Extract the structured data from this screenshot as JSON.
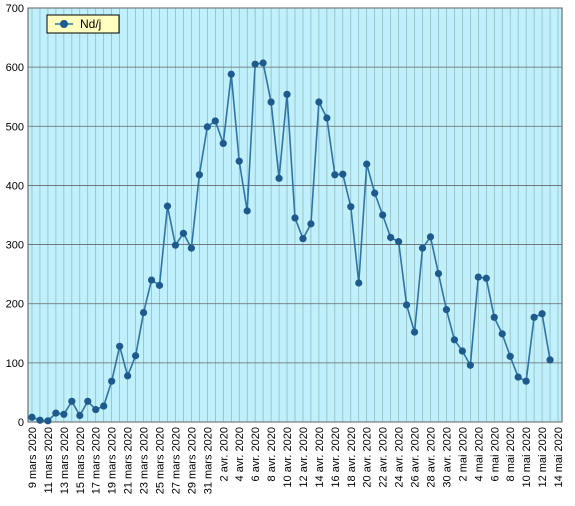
{
  "chart_data": {
    "type": "line",
    "categories": [
      "9 mars 2020",
      null,
      "11 mars 2020",
      null,
      "13 mars 2020",
      null,
      "15 mars 2020",
      null,
      "17 mars 2020",
      null,
      "19 mars 2020",
      null,
      "21 mars 2020",
      null,
      "23 mars 2020",
      null,
      "25 mars 2020",
      null,
      "27 mars 2020",
      null,
      "29 mars 2020",
      null,
      "31 mars 2020",
      null,
      "2 avr. 2020",
      null,
      "4 avr. 2020",
      null,
      "6 avr. 2020",
      null,
      "8 avr. 2020",
      null,
      "10 avr. 2020",
      null,
      "12 avr. 2020",
      null,
      "14 avr. 2020",
      null,
      "16 avr. 2020",
      null,
      "18 avr. 2020",
      null,
      "20 avr. 2020",
      null,
      "22 avr. 2020",
      null,
      "24 avr. 2020",
      null,
      "26 avr. 2020",
      null,
      "28 avr. 2020",
      null,
      "30 avr. 2020",
      null,
      "2 mai 2020",
      null,
      "4 mai 2020",
      null,
      "6 mai 2020",
      null,
      "8 mai 2020",
      null,
      "10 mai 2020",
      null,
      "12 mai 2020",
      null,
      "14 mai 2020"
    ],
    "series": [
      {
        "name": "Nd/j",
        "color": "#2f74a8",
        "marker_color": "#1f5a8c",
        "values": [
          8,
          3,
          2,
          15,
          13,
          35,
          11,
          35,
          21,
          27,
          69,
          128,
          78,
          112,
          185,
          240,
          231,
          365,
          299,
          319,
          294,
          418,
          499,
          509,
          471,
          588,
          441,
          357,
          605,
          607,
          541,
          412,
          554,
          345,
          310,
          335,
          541,
          514,
          418,
          419,
          364,
          235,
          436,
          387,
          350,
          312,
          305,
          198,
          152,
          294,
          313,
          251,
          190,
          139,
          120,
          96,
          245,
          243,
          177,
          149,
          111,
          76,
          69,
          177,
          183,
          105,
          null
        ]
      }
    ],
    "ylim": [
      0,
      700
    ],
    "yticks": [
      0,
      100,
      200,
      300,
      400,
      500,
      600,
      700
    ],
    "grid": true,
    "legend": "upper left",
    "background": "#bff0fb"
  }
}
